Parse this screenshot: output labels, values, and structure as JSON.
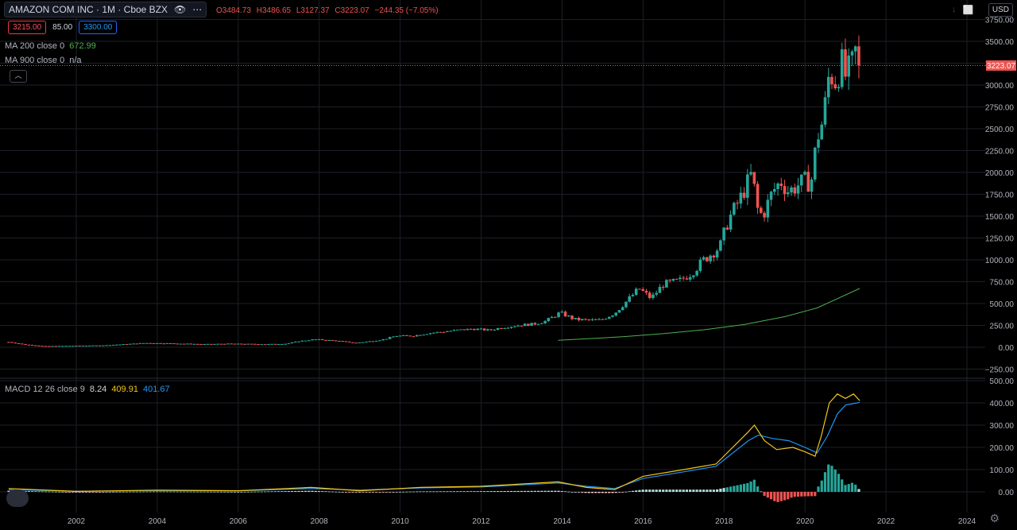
{
  "header": {
    "symbol": "AMAZON COM INC · 1M · Cboe BZX",
    "open": "O3484.73",
    "high": "H3486.65",
    "low": "L3127.37",
    "close": "C3223.07",
    "change": "−244.35 (−7.05%)"
  },
  "trade": {
    "sell": "3215.00",
    "spread": "85.00",
    "buy": "3300.00"
  },
  "indicators": {
    "ma200_label": "MA 200 close 0",
    "ma200_value": "672.99",
    "ma900_label": "MA 900 close 0",
    "ma900_value": "n/a",
    "macd_label": "MACD 12 26 close 9",
    "macd_hist": "8.24",
    "macd_macd": "409.91",
    "macd_signal": "401.67"
  },
  "currency": "USD",
  "colors": {
    "up": "#26a69a",
    "down": "#ef5350",
    "ma200": "#4caf50",
    "macd": "#f5c518",
    "signal": "#2196f3"
  },
  "chart_data": {
    "type": "candlestick",
    "price_axis": [
      "3750.00",
      "3500.00",
      "3250.00",
      "3000.00",
      "2750.00",
      "2500.00",
      "2250.00",
      "2000.00",
      "1750.00",
      "1500.00",
      "1250.00",
      "1000.00",
      "750.00",
      "500.00",
      "250.00",
      "0.00",
      "−250.00"
    ],
    "price_ylim": [
      -250,
      3750
    ],
    "last_price": "3223.07",
    "macd_axis": [
      "500.00",
      "400.00",
      "300.00",
      "200.00",
      "100.00",
      "0.00"
    ],
    "macd_ylim": [
      -30,
      500
    ],
    "x_ticks": [
      "2002",
      "2004",
      "2006",
      "2008",
      "2010",
      "2012",
      "2014",
      "2016",
      "2018",
      "2020",
      "2022",
      "2024"
    ],
    "xlim": [
      2000.3,
      2025.0
    ],
    "close_series": [
      [
        2000.33,
        60
      ],
      [
        2000.75,
        30
      ],
      [
        2001.2,
        12
      ],
      [
        2001.7,
        15
      ],
      [
        2002.2,
        18
      ],
      [
        2002.7,
        22
      ],
      [
        2003.2,
        35
      ],
      [
        2003.7,
        48
      ],
      [
        2004.2,
        45
      ],
      [
        2004.7,
        40
      ],
      [
        2005.2,
        35
      ],
      [
        2005.7,
        40
      ],
      [
        2006.2,
        38
      ],
      [
        2006.7,
        35
      ],
      [
        2007.2,
        40
      ],
      [
        2007.5,
        70
      ],
      [
        2007.9,
        90
      ],
      [
        2008.4,
        75
      ],
      [
        2008.9,
        50
      ],
      [
        2009.2,
        65
      ],
      [
        2009.6,
        90
      ],
      [
        2009.9,
        130
      ],
      [
        2010.3,
        130
      ],
      [
        2010.7,
        160
      ],
      [
        2011.0,
        175
      ],
      [
        2011.4,
        195
      ],
      [
        2011.8,
        210
      ],
      [
        2012.2,
        195
      ],
      [
        2012.5,
        225
      ],
      [
        2012.9,
        250
      ],
      [
        2013.3,
        265
      ],
      [
        2013.6,
        300
      ],
      [
        2013.95,
        395
      ],
      [
        2014.3,
        320
      ],
      [
        2014.6,
        310
      ],
      [
        2014.95,
        310
      ],
      [
        2015.3,
        390
      ],
      [
        2015.6,
        530
      ],
      [
        2015.9,
        670
      ],
      [
        2016.2,
        560
      ],
      [
        2016.5,
        720
      ],
      [
        2016.9,
        760
      ],
      [
        2017.2,
        850
      ],
      [
        2017.5,
        1000
      ],
      [
        2017.9,
        1150
      ],
      [
        2018.1,
        1450
      ],
      [
        2018.4,
        1700
      ],
      [
        2018.7,
        2000
      ],
      [
        2018.8,
        1600
      ],
      [
        2018.95,
        1500
      ],
      [
        2019.2,
        1780
      ],
      [
        2019.4,
        1900
      ],
      [
        2019.6,
        1780
      ],
      [
        2019.8,
        1850
      ],
      [
        2020.0,
        1900
      ],
      [
        2020.15,
        1880
      ],
      [
        2020.3,
        2400
      ],
      [
        2020.45,
        2600
      ],
      [
        2020.6,
        3150
      ],
      [
        2020.75,
        3050
      ],
      [
        2020.9,
        3250
      ],
      [
        2021.0,
        3100
      ],
      [
        2021.15,
        3200
      ],
      [
        2021.3,
        3467
      ],
      [
        2021.35,
        3223
      ]
    ],
    "ma200": [
      [
        2013.9,
        80
      ],
      [
        2014.5,
        95
      ],
      [
        2015.5,
        120
      ],
      [
        2016.5,
        155
      ],
      [
        2017.5,
        200
      ],
      [
        2018.5,
        260
      ],
      [
        2019.5,
        350
      ],
      [
        2020.3,
        450
      ],
      [
        2021.35,
        673
      ]
    ],
    "macd": [
      [
        2000.33,
        15
      ],
      [
        2002,
        2
      ],
      [
        2004,
        8
      ],
      [
        2006,
        5
      ],
      [
        2007.8,
        20
      ],
      [
        2009,
        5
      ],
      [
        2010.5,
        20
      ],
      [
        2012,
        25
      ],
      [
        2013.9,
        45
      ],
      [
        2014.6,
        20
      ],
      [
        2015.3,
        10
      ],
      [
        2016,
        70
      ],
      [
        2017,
        100
      ],
      [
        2017.8,
        125
      ],
      [
        2018.6,
        270
      ],
      [
        2018.75,
        300
      ],
      [
        2019.0,
        230
      ],
      [
        2019.3,
        190
      ],
      [
        2019.7,
        200
      ],
      [
        2020.0,
        180
      ],
      [
        2020.25,
        160
      ],
      [
        2020.4,
        250
      ],
      [
        2020.6,
        400
      ],
      [
        2020.8,
        440
      ],
      [
        2021.0,
        420
      ],
      [
        2021.2,
        440
      ],
      [
        2021.35,
        410
      ]
    ],
    "signal": [
      [
        2000.33,
        10
      ],
      [
        2002,
        3
      ],
      [
        2004,
        6
      ],
      [
        2006,
        5
      ],
      [
        2007.8,
        15
      ],
      [
        2009,
        8
      ],
      [
        2010.5,
        18
      ],
      [
        2012,
        22
      ],
      [
        2013.9,
        40
      ],
      [
        2014.6,
        25
      ],
      [
        2015.3,
        15
      ],
      [
        2016,
        60
      ],
      [
        2017,
        90
      ],
      [
        2017.8,
        115
      ],
      [
        2018.6,
        230
      ],
      [
        2018.85,
        255
      ],
      [
        2019.2,
        240
      ],
      [
        2019.6,
        230
      ],
      [
        2020.0,
        200
      ],
      [
        2020.3,
        175
      ],
      [
        2020.55,
        250
      ],
      [
        2020.8,
        350
      ],
      [
        2021.0,
        390
      ],
      [
        2021.35,
        402
      ]
    ]
  }
}
